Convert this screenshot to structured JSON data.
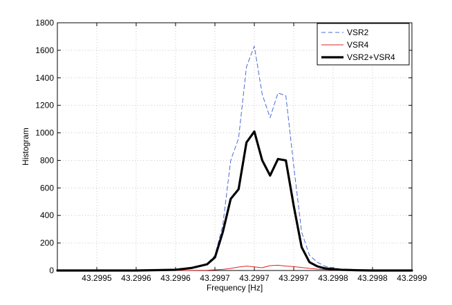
{
  "chart_data": {
    "type": "line",
    "title": "",
    "xlabel": "Frequency [Hz]",
    "ylabel": "Histogram",
    "ylim": [
      0,
      1800
    ],
    "xlim": [
      43.29945,
      43.2999
    ],
    "grid": true,
    "legend": {
      "placement": "top-right"
    },
    "yticks": [
      0,
      200,
      400,
      600,
      800,
      1000,
      1200,
      1400,
      1600,
      1800
    ],
    "xticks": [
      {
        "value": 43.2995,
        "label": "43.2995"
      },
      {
        "value": 43.29955,
        "label": "43.2996"
      },
      {
        "value": 43.2996,
        "label": "43.2996"
      },
      {
        "value": 43.29965,
        "label": "43.2997"
      },
      {
        "value": 43.2997,
        "label": "43.2997"
      },
      {
        "value": 43.29975,
        "label": "43.2997"
      },
      {
        "value": 43.2998,
        "label": "43.2998"
      },
      {
        "value": 43.29985,
        "label": "43.2998"
      },
      {
        "value": 43.2999,
        "label": "43.2999"
      }
    ],
    "series": [
      {
        "name": "VSR2",
        "color": "#4a68d8",
        "style": "dashed",
        "x": [
          43.29945,
          43.29955,
          43.2996,
          43.29962,
          43.29964,
          43.29965,
          43.29966,
          43.29967,
          43.29968,
          43.29969,
          43.2997,
          43.29971,
          43.29972,
          43.29973,
          43.29974,
          43.29975,
          43.29976,
          43.29977,
          43.29978,
          43.29979,
          43.2998,
          43.29981,
          43.29983,
          43.29985,
          43.2999
        ],
        "y": [
          0,
          0,
          5,
          20,
          50,
          110,
          330,
          800,
          960,
          1480,
          1630,
          1280,
          1110,
          1290,
          1270,
          760,
          280,
          110,
          60,
          30,
          20,
          10,
          5,
          0,
          0
        ]
      },
      {
        "name": "VSR4",
        "color": "#e02020",
        "style": "solid",
        "x": [
          43.29945,
          43.2996,
          43.29964,
          43.29966,
          43.29967,
          43.29968,
          43.29969,
          43.2997,
          43.29971,
          43.29972,
          43.29973,
          43.29974,
          43.29975,
          43.29976,
          43.29977,
          43.29978,
          43.2998,
          43.29983,
          43.2999
        ],
        "y": [
          0,
          0,
          2,
          8,
          15,
          25,
          32,
          26,
          20,
          35,
          38,
          32,
          28,
          22,
          15,
          10,
          4,
          1,
          0
        ]
      },
      {
        "name": "VSR2+VSR4",
        "color": "#000000",
        "style": "solid",
        "x": [
          43.29945,
          43.29955,
          43.2996,
          43.29962,
          43.29964,
          43.29965,
          43.29966,
          43.29967,
          43.29968,
          43.29969,
          43.2997,
          43.29971,
          43.29972,
          43.29973,
          43.29974,
          43.29975,
          43.29976,
          43.29977,
          43.29978,
          43.29979,
          43.2998,
          43.29981,
          43.29983,
          43.29985,
          43.2999
        ],
        "y": [
          0,
          0,
          5,
          18,
          45,
          95,
          280,
          520,
          590,
          930,
          1010,
          800,
          690,
          810,
          800,
          470,
          170,
          60,
          30,
          15,
          10,
          5,
          2,
          0,
          0
        ]
      }
    ]
  }
}
